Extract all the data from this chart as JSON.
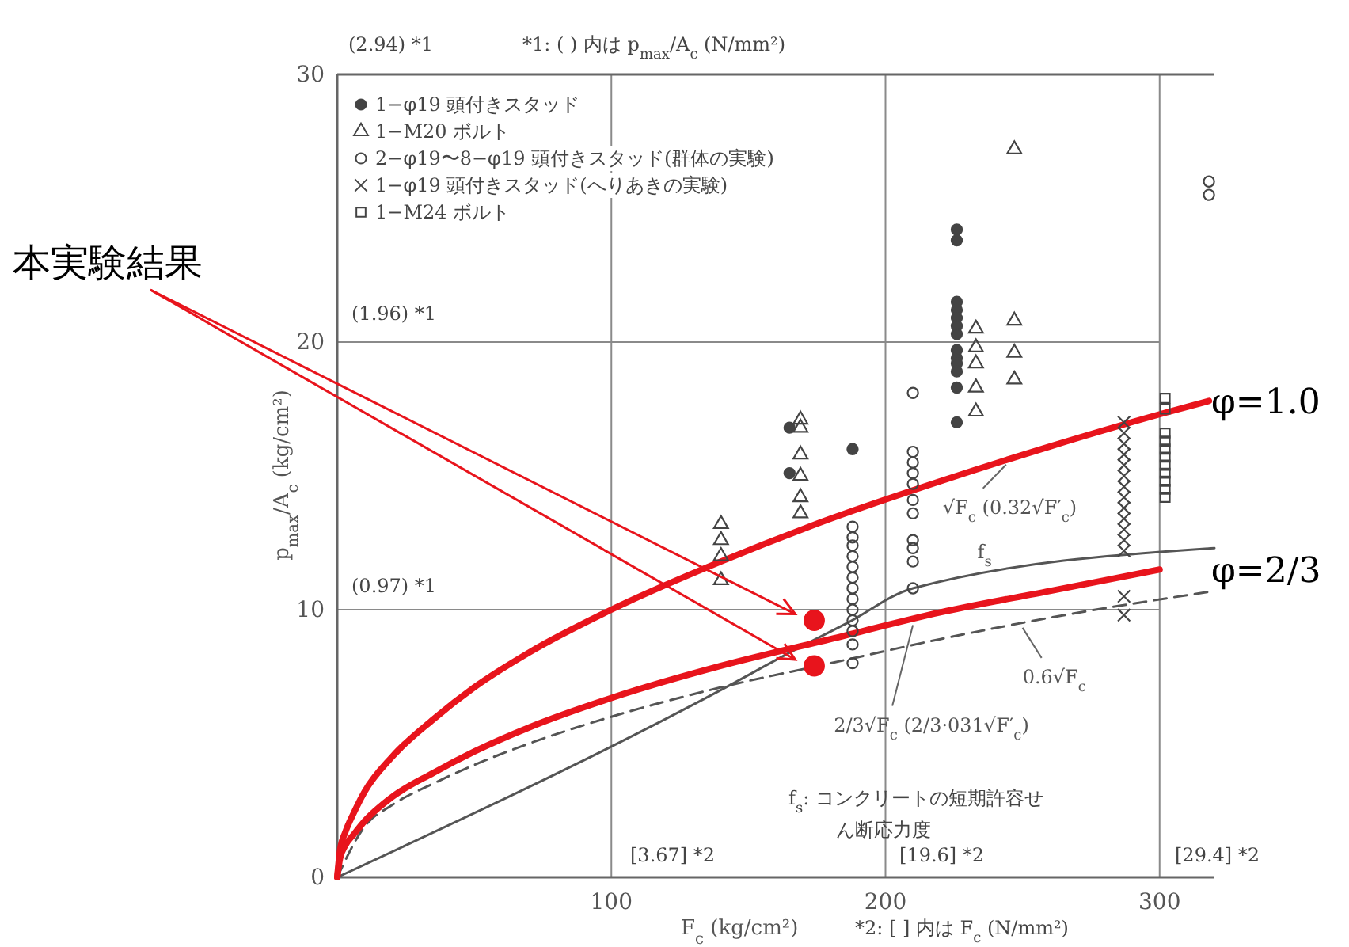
{
  "chart_data": {
    "type": "scatter",
    "xlabel": "F$_{c}$ (kg/cm²)",
    "ylabel": "p$_{max}$/A$_{c}$ (kg/cm²)",
    "xlim": [
      0,
      320
    ],
    "ylim": [
      0,
      30
    ],
    "xticks": [
      100,
      200,
      300
    ],
    "yticks": [
      0,
      10,
      20,
      30
    ],
    "grid": true,
    "legend": "top left",
    "series": [
      {
        "name": "1−φ19 頭付きスタッド",
        "marker": "circle",
        "color": "#444444",
        "x": [
          165,
          165,
          188,
          226,
          226,
          226,
          226,
          226,
          226,
          226,
          226,
          226,
          226,
          226,
          226,
          226
        ],
        "values": [
          16.8,
          15.1,
          16.0,
          24.2,
          23.8,
          21.5,
          21.2,
          20.9,
          20.6,
          20.3,
          19.7,
          19.4,
          19.2,
          18.9,
          18.3,
          17.0
        ]
      },
      {
        "name": "1−M20 ボルト",
        "marker": "triangle",
        "color": "#444444",
        "x": [
          140,
          140,
          140,
          140,
          169,
          169,
          169,
          169,
          169,
          169,
          233,
          233,
          233,
          233,
          233,
          247,
          247,
          247,
          247
        ],
        "values": [
          13.2,
          12.6,
          12.0,
          11.1,
          17.1,
          16.8,
          15.8,
          15.0,
          14.2,
          13.6,
          20.5,
          19.8,
          19.2,
          18.3,
          17.4,
          27.2,
          20.8,
          19.6,
          18.6
        ]
      },
      {
        "name": "2−φ19〜8−φ19 頭付きスタッド(群体の実験)",
        "marker": "circle",
        "color": "#444444",
        "x": [
          188,
          188,
          188,
          188,
          188,
          188,
          188,
          188,
          188,
          188,
          188,
          188,
          188,
          210,
          210,
          210,
          210,
          210,
          210,
          210,
          210,
          210,
          210,
          210,
          318,
          318
        ],
        "values": [
          13.1,
          12.7,
          12.4,
          12.0,
          11.6,
          11.2,
          10.8,
          10.4,
          10.0,
          9.6,
          9.2,
          8.7,
          8.0,
          18.1,
          15.9,
          15.5,
          15.1,
          14.7,
          14.1,
          13.6,
          12.6,
          12.3,
          11.8,
          10.8,
          26.0,
          25.5
        ]
      },
      {
        "name": "1−φ19 頭付きスタッド(へりあきの実験)",
        "marker": "cross",
        "color": "#444444",
        "x": [
          287,
          287,
          287,
          287,
          287,
          287,
          287,
          287,
          287,
          287,
          287,
          287,
          287,
          287,
          287
        ],
        "values": [
          17.0,
          16.6,
          16.2,
          15.8,
          15.4,
          15.0,
          14.6,
          14.2,
          13.8,
          13.4,
          13.0,
          12.6,
          12.2,
          10.5,
          9.8
        ]
      },
      {
        "name": "1−M24 ボルト",
        "marker": "square",
        "color": "#444444",
        "x": [
          302,
          302,
          302,
          302,
          302,
          302,
          302,
          302,
          302,
          302,
          302
        ],
        "values": [
          17.9,
          17.5,
          16.6,
          16.3,
          16.0,
          15.7,
          15.4,
          15.1,
          14.8,
          14.5,
          14.2
        ]
      },
      {
        "type": "line",
        "color": "#555555",
        "line_style": "dashed",
        "x": [
          0,
          10,
          20,
          35,
          50,
          70,
          100,
          140,
          180,
          220,
          260,
          320
        ],
        "values": [
          0,
          1.9,
          2.7,
          3.5,
          4.2,
          5.0,
          6.0,
          7.1,
          8.0,
          8.9,
          9.7,
          10.7
        ]
      },
      {
        "type": "line",
        "color": "#555555",
        "line_style": "solid",
        "x": [
          0,
          140,
          167,
          186,
          210,
          320
        ],
        "values": [
          0,
          7.0,
          8.5,
          9.5,
          10.8,
          12.3
        ]
      },
      {
        "type": "line",
        "color": "#e8141c",
        "line_style": "solid",
        "x": [
          0,
          1,
          3,
          6,
          10,
          20,
          35,
          50,
          70,
          100,
          140,
          180,
          220,
          260,
          300,
          318
        ],
        "values": [
          0,
          1.0,
          1.7,
          2.4,
          3.2,
          4.5,
          5.9,
          7.1,
          8.4,
          10.0,
          11.8,
          13.4,
          14.8,
          16.1,
          17.3,
          17.8
        ]
      },
      {
        "type": "line",
        "color": "#e8141c",
        "line_style": "solid",
        "x": [
          0,
          1,
          3,
          6,
          10,
          20,
          35,
          50,
          70,
          100,
          140,
          180,
          220,
          260,
          300
        ],
        "values": [
          0,
          0.7,
          1.2,
          1.6,
          2.1,
          3.0,
          3.9,
          4.7,
          5.6,
          6.7,
          7.9,
          8.9,
          9.9,
          10.7,
          11.5
        ]
      },
      {
        "marker": "circle",
        "color": "#e8141c",
        "x": [
          174,
          174
        ],
        "values": [
          9.6,
          7.9
        ]
      }
    ],
    "annotations": [
      "(2.94) *1",
      "*1: ( ) 内は p$_{max}$/A$_{c}$ (N/mm²)",
      "(1.96) *1",
      "(0.97) *1",
      "[3.67] *2",
      "[19.6] *2",
      "[29.4] *2",
      "*2: [ ] 内は F$_{c}$ (N/mm²)",
      "本実験結果",
      "f$_{s}$: コンクリートの短期許容せん断応力度",
      {
        "text": "φ=1.0",
        "x": 318,
        "y": 17.8
      },
      {
        "text": "φ=2/3",
        "x": 300,
        "y": 11.5
      },
      {
        "text": "√F$_{c}$ (0.32√F′$_{c}$)",
        "x": 244,
        "y": 15.6
      },
      {
        "text": "f$_{s}$",
        "x": 237,
        "y": 11.2
      },
      {
        "text": "0.6√F$_{c}$",
        "x": 250,
        "y": 9.5
      },
      {
        "text": "2/3√F$_{c}$ (2/3·031√F′$_{c}$)",
        "x": 210,
        "y": 9.6
      }
    ]
  }
}
